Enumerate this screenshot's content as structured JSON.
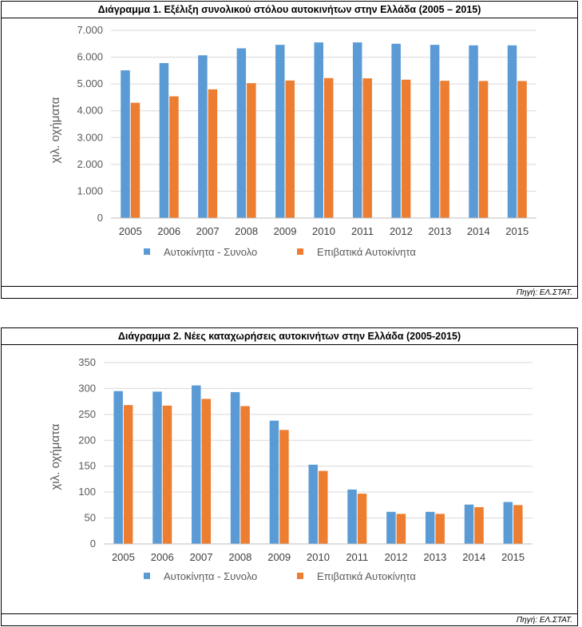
{
  "charts": [
    {
      "title": "Διάγραμμα 1. Εξέλιξη συνολικού στόλου αυτοκινήτων στην Ελλάδα (2005 – 2015)",
      "source": "Πηγή: ΕΛ.ΣΤΑΤ."
    },
    {
      "title": "Διάγραμμα 2. Νέες καταχωρήσεις αυτοκινήτων στην Ελλάδα (2005-2015)",
      "source": "Πηγή: ΕΛ.ΣΤΑΤ."
    }
  ],
  "chart_data": [
    {
      "type": "bar",
      "title": "Διάγραμμα 1. Εξέλιξη συνολικού στόλου αυτοκινήτων στην Ελλάδα (2005 – 2015)",
      "xlabel": "",
      "ylabel": "χιλ. οχήματα",
      "categories": [
        "2005",
        "2006",
        "2007",
        "2008",
        "2009",
        "2010",
        "2011",
        "2012",
        "2013",
        "2014",
        "2015"
      ],
      "series": [
        {
          "name": "Αυτοκίνητα - Συνολο",
          "color": "#5B9BD5",
          "values": [
            5510,
            5780,
            6070,
            6330,
            6460,
            6550,
            6550,
            6500,
            6460,
            6440,
            6440
          ]
        },
        {
          "name": "Επιβατικά Αυτοκίνητα",
          "color": "#ED7D31",
          "values": [
            4300,
            4540,
            4800,
            5030,
            5130,
            5220,
            5210,
            5160,
            5120,
            5110,
            5110
          ]
        }
      ],
      "ylim": [
        0,
        7000
      ],
      "yticks": [
        0,
        1000,
        2000,
        3000,
        4000,
        5000,
        6000,
        7000
      ],
      "ytick_labels": [
        "0",
        "1.000",
        "2.000",
        "3.000",
        "4.000",
        "5.000",
        "6.000",
        "7.000"
      ],
      "grid": true,
      "legend": "bottom"
    },
    {
      "type": "bar",
      "title": "Διάγραμμα 2. Νέες καταχωρήσεις αυτοκινήτων στην Ελλάδα (2005-2015)",
      "xlabel": "",
      "ylabel": "χιλ. οχήματα",
      "categories": [
        "2005",
        "2006",
        "2007",
        "2008",
        "2009",
        "2010",
        "2011",
        "2012",
        "2013",
        "2014",
        "2015"
      ],
      "series": [
        {
          "name": "Αυτοκίνητα - Συνολο",
          "color": "#5B9BD5",
          "values": [
            295,
            294,
            306,
            293,
            238,
            153,
            105,
            62,
            62,
            76,
            81
          ]
        },
        {
          "name": "Επιβατικά Αυτοκίνητα",
          "color": "#ED7D31",
          "values": [
            268,
            267,
            280,
            266,
            220,
            141,
            97,
            58,
            58,
            71,
            75
          ]
        }
      ],
      "ylim": [
        0,
        350
      ],
      "yticks": [
        0,
        50,
        100,
        150,
        200,
        250,
        300,
        350
      ],
      "ytick_labels": [
        "0",
        "50",
        "100",
        "150",
        "200",
        "250",
        "300",
        "350"
      ],
      "grid": true,
      "legend": "bottom"
    }
  ]
}
